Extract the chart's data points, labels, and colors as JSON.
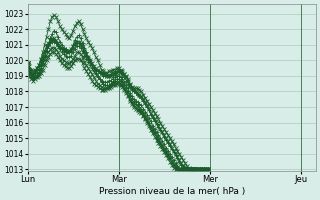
{
  "title": "",
  "xlabel": "Pression niveau de la mer( hPa )",
  "ylabel": "",
  "bg_color": "#d8ede8",
  "grid_color": "#aaccbb",
  "line_color": "#1a5c2a",
  "ylim": [
    1013,
    1023.5
  ],
  "yticks": [
    1013,
    1014,
    1015,
    1016,
    1017,
    1018,
    1019,
    1020,
    1021,
    1022,
    1023
  ],
  "day_labels": [
    "Lun",
    "Mar",
    "Mer",
    "Jeu"
  ],
  "day_positions": [
    0,
    48,
    96,
    144
  ],
  "xlim": [
    0,
    152
  ],
  "series": [
    [
      1019.8,
      1019.2,
      1019.0,
      1019.1,
      1019.3,
      1019.5,
      1019.7,
      1020.1,
      1020.5,
      1021.0,
      1021.5,
      1022.0,
      1022.5,
      1022.8,
      1022.9,
      1022.8,
      1022.5,
      1022.2,
      1022.0,
      1021.8,
      1021.7,
      1021.5,
      1021.4,
      1021.6,
      1021.9,
      1022.2,
      1022.4,
      1022.5,
      1022.3,
      1022.0,
      1021.7,
      1021.4,
      1021.2,
      1021.0,
      1020.8,
      1020.5,
      1020.2,
      1020.0,
      1019.7,
      1019.4,
      1019.3,
      1019.1,
      1019.0,
      1019.0,
      1019.0,
      1019.0,
      1019.1,
      1019.2,
      1019.3,
      1019.3,
      1019.2,
      1019.1,
      1019.0,
      1018.8,
      1018.5,
      1018.3,
      1018.2,
      1018.2,
      1018.2,
      1018.1,
      1018.0,
      1017.8,
      1017.6,
      1017.4,
      1017.2,
      1017.0,
      1016.8,
      1016.6,
      1016.4,
      1016.2,
      1016.0,
      1015.8,
      1015.6,
      1015.4,
      1015.2,
      1015.0,
      1014.8,
      1014.6,
      1014.4,
      1014.2,
      1014.0,
      1013.8,
      1013.6,
      1013.4,
      1013.2,
      1013.1,
      1013.0,
      1013.0,
      1013.0,
      1013.0,
      1013.0,
      1013.0,
      1013.0,
      1013.0,
      1013.0,
      1013.0
    ],
    [
      1019.8,
      1019.3,
      1018.9,
      1018.8,
      1018.9,
      1019.0,
      1019.2,
      1019.5,
      1019.8,
      1020.2,
      1020.6,
      1021.0,
      1021.4,
      1021.7,
      1021.9,
      1021.8,
      1021.5,
      1021.2,
      1021.0,
      1020.8,
      1020.7,
      1020.6,
      1020.5,
      1020.7,
      1021.0,
      1021.3,
      1021.5,
      1021.6,
      1021.4,
      1021.1,
      1020.8,
      1020.5,
      1020.2,
      1020.0,
      1019.7,
      1019.4,
      1019.2,
      1019.0,
      1018.8,
      1018.6,
      1018.5,
      1018.4,
      1018.4,
      1018.4,
      1018.5,
      1018.6,
      1018.7,
      1018.8,
      1018.8,
      1018.7,
      1018.6,
      1018.4,
      1018.2,
      1018.0,
      1017.7,
      1017.5,
      1017.3,
      1017.2,
      1017.1,
      1017.0,
      1016.8,
      1016.6,
      1016.4,
      1016.2,
      1016.0,
      1015.7,
      1015.5,
      1015.3,
      1015.1,
      1014.9,
      1014.7,
      1014.5,
      1014.3,
      1014.1,
      1013.9,
      1013.7,
      1013.5,
      1013.3,
      1013.2,
      1013.1,
      1013.0,
      1013.0,
      1013.0,
      1013.0,
      1013.0,
      1013.0,
      1013.0,
      1013.0,
      1013.0,
      1013.0,
      1013.0,
      1013.0,
      1013.0,
      1013.0,
      1013.0,
      1013.0
    ],
    [
      1019.8,
      1019.0,
      1018.8,
      1018.7,
      1018.8,
      1018.9,
      1019.0,
      1019.2,
      1019.4,
      1019.7,
      1020.0,
      1020.2,
      1020.4,
      1020.5,
      1020.5,
      1020.4,
      1020.2,
      1020.0,
      1019.8,
      1019.7,
      1019.6,
      1019.5,
      1019.5,
      1019.6,
      1019.8,
      1020.0,
      1020.1,
      1020.1,
      1020.0,
      1019.8,
      1019.5,
      1019.3,
      1019.1,
      1018.9,
      1018.7,
      1018.5,
      1018.4,
      1018.3,
      1018.2,
      1018.1,
      1018.1,
      1018.1,
      1018.2,
      1018.3,
      1018.4,
      1018.5,
      1018.6,
      1018.6,
      1018.6,
      1018.5,
      1018.4,
      1018.2,
      1018.0,
      1017.8,
      1017.5,
      1017.3,
      1017.1,
      1017.0,
      1016.9,
      1016.8,
      1016.7,
      1016.5,
      1016.3,
      1016.1,
      1015.9,
      1015.7,
      1015.5,
      1015.3,
      1015.1,
      1014.9,
      1014.7,
      1014.5,
      1014.3,
      1014.1,
      1013.9,
      1013.7,
      1013.5,
      1013.3,
      1013.2,
      1013.1,
      1013.0,
      1013.0,
      1013.0,
      1013.0,
      1013.0,
      1013.0,
      1013.0,
      1013.0,
      1013.0,
      1013.0,
      1013.0,
      1013.0,
      1013.0,
      1013.0,
      1013.0,
      1013.0
    ],
    [
      1019.8,
      1019.5,
      1019.2,
      1019.1,
      1019.2,
      1019.4,
      1019.6,
      1019.9,
      1020.2,
      1020.5,
      1020.8,
      1021.0,
      1021.2,
      1021.3,
      1021.3,
      1021.2,
      1021.0,
      1020.8,
      1020.7,
      1020.6,
      1020.5,
      1020.5,
      1020.5,
      1020.6,
      1020.8,
      1021.0,
      1021.1,
      1021.1,
      1021.0,
      1020.8,
      1020.5,
      1020.3,
      1020.1,
      1019.9,
      1019.7,
      1019.5,
      1019.4,
      1019.3,
      1019.2,
      1019.1,
      1019.0,
      1019.0,
      1019.0,
      1019.0,
      1019.1,
      1019.2,
      1019.2,
      1019.3,
      1019.3,
      1019.2,
      1019.1,
      1018.9,
      1018.7,
      1018.5,
      1018.3,
      1018.1,
      1018.0,
      1017.9,
      1017.8,
      1017.7,
      1017.6,
      1017.4,
      1017.2,
      1017.0,
      1016.8,
      1016.5,
      1016.3,
      1016.1,
      1015.9,
      1015.7,
      1015.5,
      1015.3,
      1015.1,
      1014.9,
      1014.7,
      1014.5,
      1014.3,
      1014.1,
      1013.9,
      1013.7,
      1013.5,
      1013.3,
      1013.2,
      1013.1,
      1013.0,
      1013.0,
      1013.0,
      1013.0,
      1013.0,
      1013.0,
      1013.0,
      1013.0,
      1013.0,
      1013.0,
      1013.0,
      1013.0
    ],
    [
      1019.8,
      1019.6,
      1019.4,
      1019.3,
      1019.4,
      1019.5,
      1019.7,
      1020.0,
      1020.3,
      1020.6,
      1020.9,
      1021.1,
      1021.3,
      1021.4,
      1021.4,
      1021.3,
      1021.1,
      1020.9,
      1020.8,
      1020.7,
      1020.6,
      1020.5,
      1020.6,
      1020.7,
      1020.9,
      1021.1,
      1021.2,
      1021.2,
      1021.1,
      1020.9,
      1020.6,
      1020.4,
      1020.2,
      1020.0,
      1019.8,
      1019.6,
      1019.5,
      1019.4,
      1019.3,
      1019.2,
      1019.2,
      1019.2,
      1019.2,
      1019.3,
      1019.3,
      1019.4,
      1019.4,
      1019.5,
      1019.5,
      1019.4,
      1019.3,
      1019.1,
      1018.9,
      1018.7,
      1018.4,
      1018.2,
      1018.1,
      1018.0,
      1017.9,
      1017.8,
      1017.7,
      1017.5,
      1017.3,
      1017.1,
      1016.9,
      1016.6,
      1016.4,
      1016.2,
      1016.0,
      1015.8,
      1015.6,
      1015.4,
      1015.2,
      1015.0,
      1014.8,
      1014.6,
      1014.4,
      1014.2,
      1014.0,
      1013.8,
      1013.6,
      1013.4,
      1013.2,
      1013.1,
      1013.0,
      1013.0,
      1013.0,
      1013.0,
      1013.0,
      1013.0,
      1013.0,
      1013.0,
      1013.0,
      1013.0,
      1013.0,
      1013.0
    ],
    [
      1019.8,
      1019.4,
      1019.1,
      1019.0,
      1019.0,
      1019.2,
      1019.4,
      1019.7,
      1020.0,
      1020.3,
      1020.6,
      1020.9,
      1021.1,
      1021.2,
      1021.2,
      1021.1,
      1020.9,
      1020.7,
      1020.5,
      1020.4,
      1020.3,
      1020.2,
      1020.2,
      1020.3,
      1020.5,
      1020.7,
      1020.9,
      1020.9,
      1020.8,
      1020.6,
      1020.3,
      1020.1,
      1019.9,
      1019.7,
      1019.5,
      1019.3,
      1019.1,
      1018.9,
      1018.8,
      1018.7,
      1018.6,
      1018.6,
      1018.6,
      1018.7,
      1018.7,
      1018.8,
      1018.9,
      1019.0,
      1019.0,
      1018.9,
      1018.8,
      1018.6,
      1018.4,
      1018.2,
      1017.9,
      1017.7,
      1017.5,
      1017.4,
      1017.3,
      1017.2,
      1017.1,
      1016.9,
      1016.7,
      1016.5,
      1016.3,
      1016.1,
      1015.8,
      1015.6,
      1015.4,
      1015.2,
      1015.0,
      1014.8,
      1014.6,
      1014.4,
      1014.2,
      1014.0,
      1013.8,
      1013.6,
      1013.4,
      1013.2,
      1013.0,
      1013.0,
      1013.0,
      1013.0,
      1013.0,
      1013.0,
      1013.0,
      1013.0,
      1013.0,
      1013.0,
      1013.0,
      1013.0,
      1013.0,
      1013.0,
      1013.0,
      1013.0
    ],
    [
      1019.8,
      1019.4,
      1019.1,
      1018.9,
      1018.9,
      1019.0,
      1019.2,
      1019.4,
      1019.7,
      1020.0,
      1020.3,
      1020.5,
      1020.7,
      1020.8,
      1020.8,
      1020.7,
      1020.5,
      1020.3,
      1020.1,
      1020.0,
      1019.9,
      1019.8,
      1019.8,
      1019.9,
      1020.1,
      1020.3,
      1020.5,
      1020.5,
      1020.4,
      1020.2,
      1019.9,
      1019.7,
      1019.5,
      1019.3,
      1019.1,
      1018.9,
      1018.7,
      1018.5,
      1018.4,
      1018.3,
      1018.2,
      1018.2,
      1018.2,
      1018.2,
      1018.3,
      1018.4,
      1018.4,
      1018.5,
      1018.5,
      1018.4,
      1018.3,
      1018.1,
      1017.9,
      1017.7,
      1017.4,
      1017.2,
      1017.0,
      1016.9,
      1016.8,
      1016.7,
      1016.6,
      1016.4,
      1016.2,
      1016.0,
      1015.8,
      1015.5,
      1015.3,
      1015.1,
      1014.9,
      1014.7,
      1014.5,
      1014.3,
      1014.1,
      1013.9,
      1013.7,
      1013.5,
      1013.3,
      1013.1,
      1013.0,
      1013.0,
      1013.0,
      1013.0,
      1013.0,
      1013.0,
      1013.0,
      1013.0,
      1013.0,
      1013.0,
      1013.0,
      1013.0,
      1013.0,
      1013.0,
      1013.0,
      1013.0,
      1013.0,
      1013.0
    ]
  ]
}
